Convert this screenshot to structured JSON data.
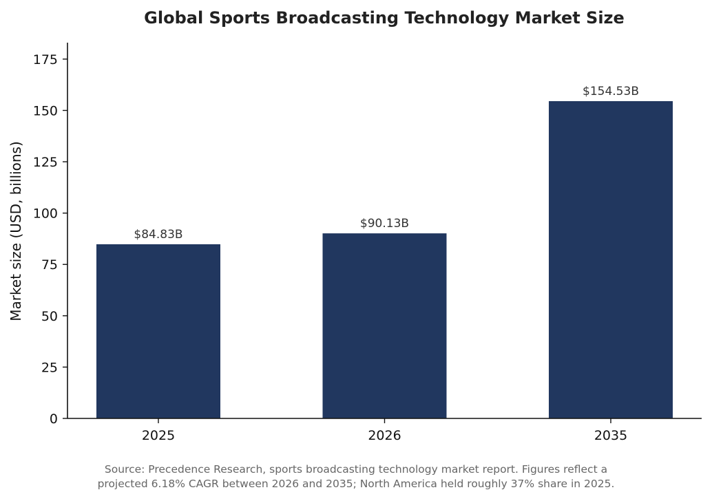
{
  "chart_data": {
    "type": "bar",
    "title": "Global Sports Broadcasting Technology Market Size",
    "xlabel": "",
    "ylabel": "Market size (USD, billions)",
    "categories": [
      "2025",
      "2026",
      "2035"
    ],
    "values": [
      84.83,
      90.13,
      154.53
    ],
    "data_labels": [
      "$84.83B",
      "$90.13B",
      "$154.53B"
    ],
    "ylim": [
      0,
      183
    ],
    "yticks": [
      0,
      25,
      50,
      75,
      100,
      125,
      150,
      175
    ],
    "grid": false,
    "legend": "none",
    "bar_color": "#21375f"
  },
  "footnote": {
    "line1": "Source: Precedence Research, sports broadcasting technology market report. Figures reflect a",
    "line2": "projected 6.18% CAGR between 2026 and 2035; North America held roughly 37% share in 2025."
  }
}
